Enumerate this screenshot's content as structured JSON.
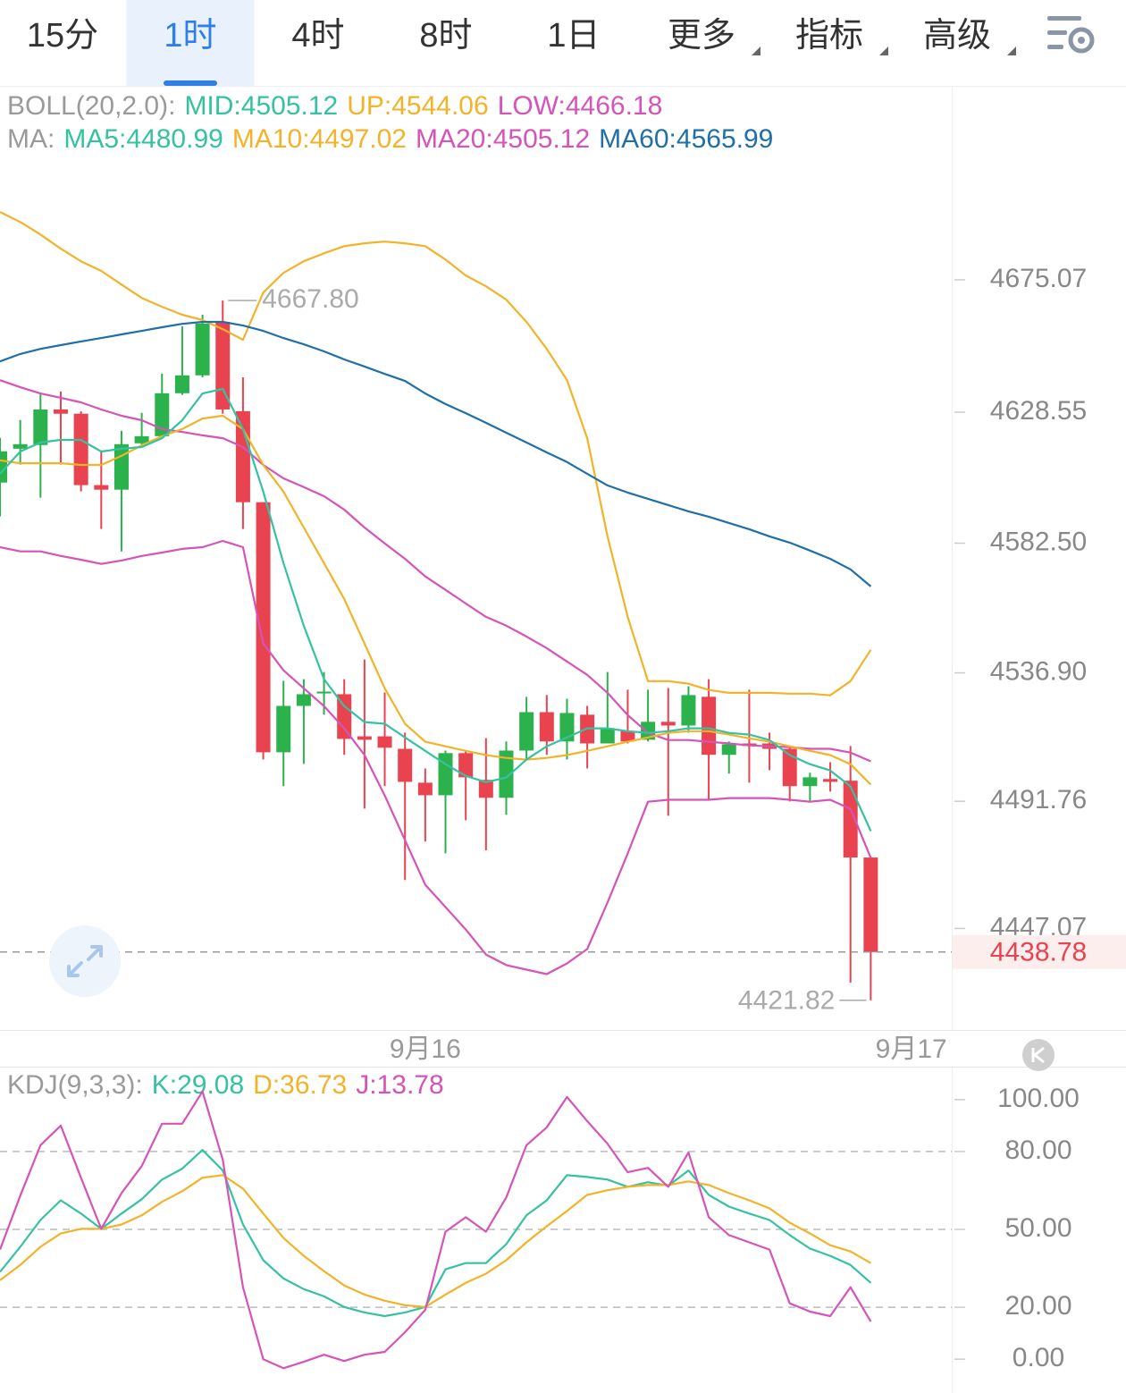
{
  "tabs": [
    {
      "label": "15分"
    },
    {
      "label": "1时"
    },
    {
      "label": "4时"
    },
    {
      "label": "8时"
    },
    {
      "label": "1日"
    },
    {
      "label": "更多",
      "dropdown": true
    },
    {
      "label": "指标",
      "dropdown": true
    },
    {
      "label": "高级",
      "dropdown": true
    }
  ],
  "active_tab": 1,
  "chart_data": [
    {
      "type": "candlestick",
      "legends": [
        {
          "title": "BOLL(20,2.0):",
          "items": [
            {
              "label": "MID:",
              "value": 4505.12,
              "color": "#35c2a1"
            },
            {
              "label": "UP:",
              "value": 4544.06,
              "color": "#f2b329"
            },
            {
              "label": "LOW:",
              "value": 4466.18,
              "color": "#d653b8"
            }
          ]
        },
        {
          "title": "MA:",
          "items": [
            {
              "label": "MA5:",
              "value": 4480.99,
              "color": "#35c2a1"
            },
            {
              "label": "MA10:",
              "value": 4497.02,
              "color": "#f2b329"
            },
            {
              "label": "MA20:",
              "value": 4505.12,
              "color": "#d653b8"
            },
            {
              "label": "MA60:",
              "value": 4565.99,
              "color": "#1f6fa8"
            }
          ]
        }
      ],
      "x": [
        0,
        1,
        2,
        3,
        4,
        5,
        6,
        7,
        8,
        9,
        10,
        11,
        12,
        13,
        14,
        15,
        16,
        17,
        18,
        19,
        20,
        21,
        22,
        23,
        24,
        25,
        26,
        27,
        28,
        29,
        30,
        31,
        32,
        33,
        34,
        35,
        36,
        37,
        38,
        39,
        40,
        41,
        42,
        43
      ],
      "xlim": [
        0,
        47
      ],
      "xticks": [
        {
          "value": 21,
          "label": "9月16"
        },
        {
          "value": 45,
          "label": "9月17"
        }
      ],
      "ylim": [
        4412,
        4742
      ],
      "yticks": [
        4675.07,
        4628.55,
        {
          "value": 4582.5,
          "label": "4582.50"
        },
        {
          "value": 4536.9,
          "label": "4536.90"
        },
        4491.76,
        4447.07
      ],
      "open": [
        4603.8,
        4615.7,
        4617.0,
        4629.5,
        4628.0,
        4602.9,
        4601.3,
        4617.6,
        4620.1,
        4635.2,
        4641.5,
        4660.3,
        4628.9,
        4596.9,
        4509.0,
        4525.3,
        4529.4,
        4529.4,
        4514.6,
        4514.6,
        4510.2,
        4498.3,
        4493.9,
        4508.7,
        4499.3,
        4493.0,
        4509.6,
        4523.1,
        4512.8,
        4522.2,
        4512.1,
        4516.5,
        4513.4,
        4519.7,
        4518.4,
        4528.5,
        4508.1,
        4512.1,
        4512.1,
        4510.2,
        4497.1,
        4499.6,
        4499.0,
        4472.0
      ],
      "high": [
        4619.5,
        4625.8,
        4635.2,
        4635.8,
        4628.9,
        4614.8,
        4622.0,
        4628.3,
        4642.1,
        4658.7,
        4662.8,
        4667.8,
        4640.8,
        4596.9,
        4534.1,
        4534.7,
        4537.2,
        4534.7,
        4541.6,
        4530.0,
        4515.9,
        4503.3,
        4509.6,
        4509.6,
        4514.0,
        4512.8,
        4528.5,
        4529.1,
        4527.8,
        4525.3,
        4537.2,
        4531.0,
        4531.0,
        4531.6,
        4532.2,
        4534.7,
        4512.8,
        4531.0,
        4515.9,
        4511.2,
        4501.8,
        4505.5,
        4511.2,
        4472.0
      ],
      "low": [
        4591.9,
        4610.1,
        4598.5,
        4610.1,
        4600.7,
        4587.5,
        4579.6,
        4616.3,
        4619.5,
        4634.6,
        4640.8,
        4628.0,
        4587.5,
        4506.5,
        4497.1,
        4504.9,
        4522.2,
        4508.1,
        4489.2,
        4497.1,
        4464.1,
        4477.6,
        4473.5,
        4485.1,
        4474.5,
        4487.0,
        4506.5,
        4508.1,
        4506.5,
        4503.3,
        4512.1,
        4512.1,
        4512.8,
        4486.7,
        4515.9,
        4492.4,
        4501.5,
        4498.3,
        4502.7,
        4491.7,
        4491.7,
        4495.2,
        4428.0,
        4421.82
      ],
      "close": [
        4614.8,
        4617.3,
        4629.5,
        4628.0,
        4602.9,
        4601.3,
        4617.3,
        4620.1,
        4635.2,
        4641.5,
        4659.7,
        4629.5,
        4596.9,
        4509.0,
        4525.3,
        4529.4,
        4530.0,
        4513.7,
        4513.4,
        4510.6,
        4498.6,
        4493.9,
        4508.7,
        4500.2,
        4493.0,
        4509.6,
        4523.1,
        4512.8,
        4522.8,
        4512.1,
        4517.5,
        4512.8,
        4519.7,
        4518.4,
        4529.1,
        4508.1,
        4511.8,
        4511.2,
        4510.2,
        4497.1,
        4500.2,
        4498.6,
        4472.0,
        4438.78
      ],
      "up_color": "#2bb24c",
      "down_color": "#e8434f",
      "high_label": "4667.80",
      "series": [
        {
          "color": "#f2b329",
          "values": [
            4698.9,
            4695.4,
            4691.0,
            4686.0,
            4681.6,
            4678.2,
            4673.4,
            4668.7,
            4665.6,
            4662.8,
            4660.9,
            4657.7,
            4654.0,
            4670.6,
            4677.5,
            4681.6,
            4684.4,
            4686.9,
            4687.9,
            4688.5,
            4687.9,
            4686.9,
            4682.2,
            4676.6,
            4672.8,
            4668.1,
            4660.3,
            4650.8,
            4639.8,
            4619.4,
            4584.9,
            4556.6,
            4534.0,
            4534.0,
            4533.1,
            4530.9,
            4529.9,
            4529.9,
            4529.9,
            4529.6,
            4529.6,
            4529.0,
            4534.0,
            4545.0
          ]
        },
        {
          "color": "#d653b8",
          "values": [
            4581.1,
            4579.6,
            4579.6,
            4578.0,
            4576.7,
            4575.2,
            4576.4,
            4578.0,
            4579.2,
            4580.5,
            4581.1,
            4583.3,
            4581.1,
            4547.2,
            4537.8,
            4531.5,
            4525.2,
            4517.4,
            4508.0,
            4493.8,
            4478.1,
            4462.4,
            4454.6,
            4446.7,
            4437.9,
            4434.2,
            4432.6,
            4431.0,
            4434.8,
            4439.8,
            4456.2,
            4473.4,
            4491.6,
            4492.3,
            4492.3,
            4492.3,
            4492.9,
            4492.9,
            4492.9,
            4492.3,
            4491.6,
            4492.3,
            4489.1,
            4471.9
          ]
        },
        {
          "color": "#d653b8",
          "values": [
            4639.8,
            4637.3,
            4635.1,
            4633.6,
            4632.0,
            4629.5,
            4627.3,
            4625.7,
            4622.6,
            4621.6,
            4620.4,
            4619.4,
            4616.3,
            4610.0,
            4605.3,
            4602.2,
            4599.0,
            4594.3,
            4588.0,
            4582.4,
            4577.0,
            4570.8,
            4566.1,
            4561.3,
            4556.6,
            4553.5,
            4549.7,
            4545.6,
            4540.9,
            4536.2,
            4529.9,
            4522.1,
            4515.8,
            4513.3,
            4513.3,
            4512.7,
            4512.1,
            4511.4,
            4511.1,
            4510.8,
            4510.2,
            4510.2,
            4508.9,
            4505.8
          ]
        },
        {
          "color": "#1f6fa8",
          "values": [
            4646.4,
            4649.0,
            4650.8,
            4652.1,
            4653.4,
            4654.6,
            4655.9,
            4657.1,
            4658.4,
            4659.6,
            4660.3,
            4660.3,
            4659.0,
            4657.1,
            4654.6,
            4652.4,
            4649.9,
            4647.1,
            4644.6,
            4642.0,
            4639.5,
            4635.1,
            4631.4,
            4628.2,
            4624.8,
            4621.3,
            4617.9,
            4614.4,
            4611.0,
            4606.9,
            4602.8,
            4600.3,
            4598.1,
            4595.9,
            4593.7,
            4591.8,
            4589.6,
            4587.4,
            4584.9,
            4582.7,
            4579.9,
            4577.0,
            4573.3,
            4567.3
          ]
        },
        {
          "color": "#f2b329",
          "values": [
            4611.6,
            4610.6,
            4610.6,
            4610.6,
            4610.0,
            4610.0,
            4613.2,
            4616.9,
            4620.1,
            4622.6,
            4626.3,
            4627.3,
            4622.6,
            4610.0,
            4600.6,
            4588.0,
            4575.5,
            4562.9,
            4547.2,
            4531.5,
            4519.0,
            4512.7,
            4511.1,
            4509.5,
            4508.0,
            4507.0,
            4506.4,
            4507.0,
            4508.0,
            4509.5,
            4511.1,
            4512.7,
            4514.2,
            4515.8,
            4516.4,
            4516.4,
            4515.2,
            4513.9,
            4512.7,
            4511.1,
            4509.5,
            4508.0,
            4504.8,
            4497.6
          ]
        },
        {
          "color": "#35c2a1",
          "values": [
            4606.9,
            4614.7,
            4617.9,
            4618.8,
            4618.8,
            4614.7,
            4615.7,
            4616.3,
            4619.4,
            4625.7,
            4635.1,
            4636.7,
            4622.6,
            4600.6,
            4575.5,
            4553.5,
            4534.7,
            4525.2,
            4519.6,
            4519.0,
            4514.2,
            4509.5,
            4504.8,
            4500.7,
            4498.5,
            4500.1,
            4506.4,
            4511.1,
            4514.2,
            4517.4,
            4517.4,
            4516.4,
            4515.8,
            4516.4,
            4517.4,
            4517.4,
            4515.8,
            4515.2,
            4513.3,
            4508.0,
            4504.8,
            4502.6,
            4497.0,
            4481.3
          ]
        }
      ]
    },
    {
      "type": "line",
      "legends": [
        {
          "title": "KDJ(9,3,3):",
          "items": [
            {
              "label": "K:",
              "value": 29.08,
              "color": "#35c2a1"
            },
            {
              "label": "D:",
              "value": 36.73,
              "color": "#f2b329"
            },
            {
              "label": "J:",
              "value": 13.78,
              "color": "#d653b8"
            }
          ]
        }
      ],
      "ylim": [
        -12,
        112
      ],
      "yticks": [
        {
          "value": 100,
          "label": "100.00"
        },
        {
          "value": 80,
          "label": "80.00"
        },
        {
          "value": 50,
          "label": "50.00"
        },
        {
          "value": 20,
          "label": "20.00"
        },
        {
          "value": 0,
          "label": "0.00"
        }
      ],
      "grid_lines": [
        80,
        50,
        20
      ],
      "series": [
        {
          "color": "#35c2a1",
          "values": [
            33.6,
            43.3,
            53.6,
            61.2,
            56.1,
            50.2,
            56.1,
            61.6,
            69.2,
            73.4,
            80.6,
            72.7,
            51.9,
            38.1,
            31.1,
            27.0,
            24.2,
            20.1,
            18.0,
            16.6,
            18.0,
            20.1,
            34.6,
            37.0,
            37.0,
            44.3,
            55.4,
            61.2,
            70.9,
            70.2,
            69.2,
            66.4,
            68.2,
            66.8,
            72.7,
            63.3,
            58.8,
            56.1,
            53.6,
            47.8,
            42.6,
            39.8,
            36.3,
            29.4
          ]
        },
        {
          "color": "#f2b329",
          "values": [
            30.4,
            36.3,
            43.3,
            48.4,
            50.2,
            50.2,
            51.9,
            55.4,
            60.6,
            64.7,
            69.9,
            70.9,
            65.7,
            56.1,
            46.7,
            39.8,
            33.9,
            28.4,
            24.9,
            22.5,
            20.8,
            20.1,
            24.9,
            29.4,
            32.9,
            38.1,
            45.0,
            51.2,
            57.1,
            63.3,
            65.1,
            66.4,
            67.1,
            67.1,
            68.5,
            67.1,
            64.0,
            61.2,
            58.1,
            52.6,
            48.4,
            43.9,
            41.5,
            37.0
          ]
        },
        {
          "color": "#d653b8",
          "values": [
            42.2,
            63.0,
            82.4,
            90.0,
            69.9,
            50.2,
            64.0,
            74.4,
            90.7,
            90.7,
            103.1,
            76.8,
            27.7,
            0.0,
            -3.5,
            -1.0,
            1.7,
            -0.7,
            1.7,
            2.8,
            10.4,
            19.0,
            49.1,
            54.7,
            49.1,
            62.3,
            82.4,
            89.3,
            101.0,
            91.7,
            83.0,
            72.0,
            73.7,
            66.4,
            79.6,
            54.7,
            47.8,
            45.0,
            42.2,
            21.5,
            18.3,
            16.6,
            27.7,
            14.5
          ]
        }
      ]
    }
  ]
}
